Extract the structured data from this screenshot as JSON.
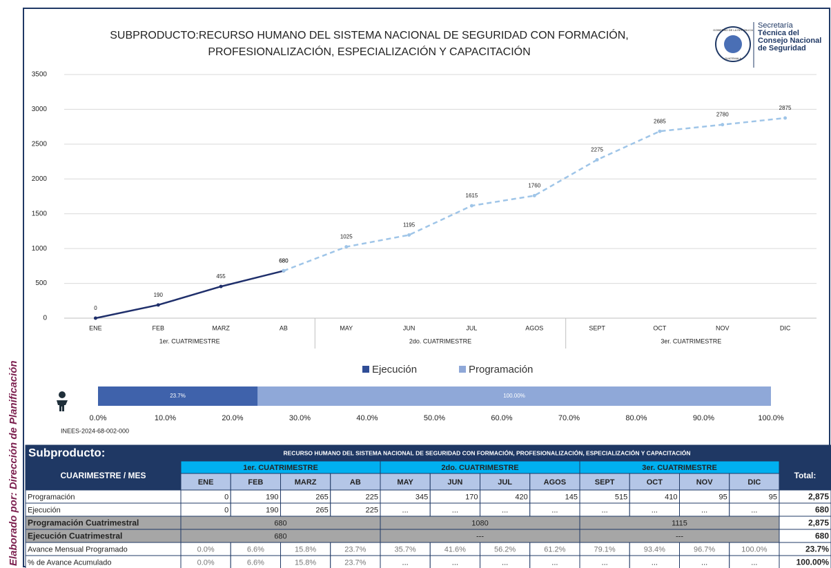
{
  "side_label": "Elaborado por: Dirección de Planificación",
  "logo": {
    "seal_top": "GOBIERNO DE LA REPÚBLICA",
    "seal_bottom": "GUATEMALA",
    "lines": [
      "Secretaría",
      "Técnica del",
      "Consejo Nacional",
      "de Seguridad"
    ]
  },
  "chart_data": [
    {
      "type": "line",
      "title": [
        "SUBPRODUCTO:RECURSO HUMANO DEL SISTEMA NACIONAL DE SEGURIDAD CON FORMACIÓN,",
        "PROFESIONALIZACIÓN, ESPECIALIZACIÓN Y CAPACITACIÓN"
      ],
      "categories": [
        "ENE",
        "FEB",
        "MARZ",
        "AB",
        "MAY",
        "JUN",
        "JUL",
        "AGOS",
        "SEPT",
        "OCT",
        "NOV",
        "DIC"
      ],
      "groups": [
        {
          "name": "1er. CUATRIMESTRE",
          "size": 4
        },
        {
          "name": "2do. CUATRIMESTRE",
          "size": 4
        },
        {
          "name": "3er. CUATRIMESTRE",
          "size": 4
        }
      ],
      "series": [
        {
          "name": "Ejecución",
          "color": "#1f2f6b",
          "legend_color": "#2f4d96",
          "dashed": false,
          "values": [
            0,
            190,
            455,
            680,
            null,
            null,
            null,
            null,
            null,
            null,
            null,
            null
          ]
        },
        {
          "name": "Programación",
          "color": "#9fc5e8",
          "legend_color": "#8fa8d8",
          "dashed": true,
          "values": [
            null,
            null,
            null,
            680,
            1025,
            1195,
            1615,
            1760,
            2275,
            2685,
            2780,
            2875
          ]
        }
      ],
      "ylim": [
        0,
        3500
      ],
      "yticks": [
        0,
        500,
        1000,
        1500,
        2000,
        2500,
        3000,
        3500
      ],
      "grid": true,
      "legend": "bottom"
    },
    {
      "type": "progress",
      "series": [
        {
          "color": "#8fa8d8",
          "values": [
            100
          ],
          "value_labels": [
            "100.00%"
          ]
        },
        {
          "color": "#3f62ab",
          "values": [
            23.7
          ],
          "value_labels": [
            "23.7%"
          ]
        }
      ],
      "xlim": [
        0,
        100
      ],
      "xticks": [
        {
          "value": 0,
          "label": "0.0%"
        },
        {
          "value": 10,
          "label": "10.0%"
        },
        {
          "value": 20,
          "label": "20.0%"
        },
        {
          "value": 30,
          "label": "30.0%"
        },
        {
          "value": 40,
          "label": "40.0%"
        },
        {
          "value": 50,
          "label": "50.0%"
        },
        {
          "value": 60,
          "label": "60.0%"
        },
        {
          "value": 70,
          "label": "70.0%"
        },
        {
          "value": 80,
          "label": "80.0%"
        },
        {
          "value": 90,
          "label": "90.0%"
        },
        {
          "value": 100,
          "label": "100.0%"
        }
      ],
      "note": "INEES-2024-68-002-000"
    }
  ],
  "table": {
    "heading": "Subproducto:",
    "subtitle": "RECURSO HUMANO DEL SISTEMA NACIONAL DE SEGURIDAD CON FORMACIÓN, PROFESIONALIZACIÓN, ESPECIALIZACIÓN Y CAPACITACIÓN",
    "corner": "CUARIMESTRE / MES",
    "groups": [
      "1er. CUATRIMESTRE",
      "2do. CUATRIMESTRE",
      "3er. CUATRIMESTRE"
    ],
    "total_header": "Total:",
    "months": [
      "ENE",
      "FEB",
      "MARZ",
      "AB",
      "MAY",
      "JUN",
      "JUL",
      "AGOS",
      "SEPT",
      "OCT",
      "NOV",
      "DIC"
    ],
    "rows": [
      {
        "label": "Programación",
        "cells": [
          "0",
          "190",
          "265",
          "225",
          "345",
          "170",
          "420",
          "145",
          "515",
          "410",
          "95",
          "95"
        ],
        "total": "2,875"
      },
      {
        "label": "Ejecución",
        "cells": [
          "0",
          "190",
          "265",
          "225",
          "...",
          "...",
          "...",
          "...",
          "...",
          "...",
          "...",
          "..."
        ],
        "total": "680"
      },
      {
        "label": "Programación Cuatrimestral",
        "cells": [
          "680",
          "1080",
          "1115"
        ],
        "total": "2,875"
      },
      {
        "label": "Ejecución Cuatrimestral",
        "cells": [
          "680",
          "---",
          "---"
        ],
        "total": "680"
      },
      {
        "label": "Avance Mensual Programado",
        "cells": [
          "0.0%",
          "6.6%",
          "15.8%",
          "23.7%",
          "35.7%",
          "41.6%",
          "56.2%",
          "61.2%",
          "79.1%",
          "93.4%",
          "96.7%",
          "100.0%"
        ],
        "total": "23.7%"
      },
      {
        "label": "% de Avance Acumulado",
        "cells": [
          "0.0%",
          "6.6%",
          "15.8%",
          "23.7%",
          "...",
          "...",
          "...",
          "...",
          "...",
          "...",
          "...",
          "..."
        ],
        "total": "100.00%"
      }
    ]
  }
}
